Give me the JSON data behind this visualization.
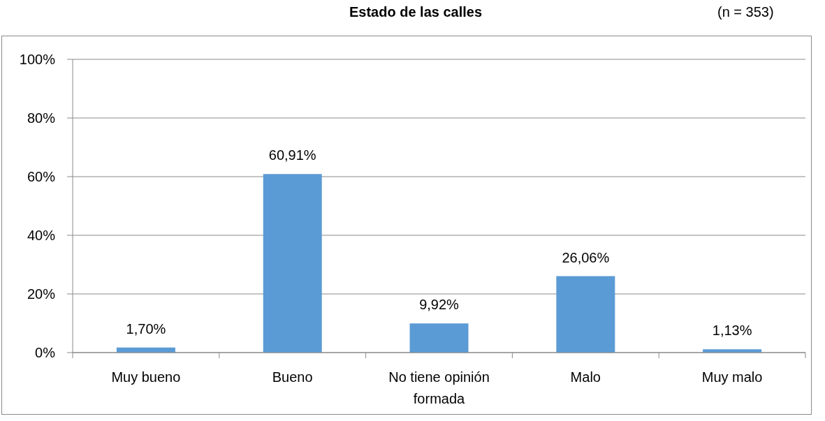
{
  "chart_data": {
    "type": "bar",
    "title": "Estado de las calles",
    "subtitle": "(n = 353)",
    "categories": [
      "Muy bueno",
      "Bueno",
      "No tiene opinión formada",
      "Malo",
      "Muy malo"
    ],
    "values": [
      1.7,
      60.91,
      9.92,
      26.06,
      1.13
    ],
    "value_labels": [
      "1,70%",
      "60,91%",
      "9,92%",
      "26,06%",
      "1,13%"
    ],
    "color": "#5b9bd5",
    "ylim": [
      0,
      100
    ],
    "yticks": [
      {
        "value": 0,
        "label": "0%"
      },
      {
        "value": 20,
        "label": "20%"
      },
      {
        "value": 40,
        "label": "40%"
      },
      {
        "value": 60,
        "label": "60%"
      },
      {
        "value": 80,
        "label": "80%"
      },
      {
        "value": 100,
        "label": "100%"
      }
    ],
    "grid": "y"
  }
}
